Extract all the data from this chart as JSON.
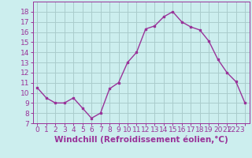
{
  "x": [
    0,
    1,
    2,
    3,
    4,
    5,
    6,
    7,
    8,
    9,
    10,
    11,
    12,
    13,
    14,
    15,
    16,
    17,
    18,
    19,
    20,
    21,
    22,
    23
  ],
  "y": [
    10.5,
    9.5,
    9.0,
    9.0,
    9.5,
    8.5,
    7.5,
    8.0,
    10.4,
    11.0,
    13.0,
    14.0,
    16.3,
    16.6,
    17.5,
    18.0,
    17.0,
    16.5,
    16.2,
    15.1,
    13.3,
    12.0,
    11.1,
    9.0
  ],
  "line_color": "#993399",
  "marker_color": "#993399",
  "bg_color": "#cceeee",
  "grid_color": "#aacccc",
  "xlabel": "Windchill (Refroidissement éolien,°C)",
  "xlabel_color": "#993399",
  "ylim": [
    7,
    19
  ],
  "xlim": [
    -0.5,
    23.5
  ],
  "yticks": [
    7,
    8,
    9,
    10,
    11,
    12,
    13,
    14,
    15,
    16,
    17,
    18
  ],
  "xticks": [
    0,
    1,
    2,
    3,
    4,
    5,
    6,
    7,
    8,
    9,
    10,
    11,
    12,
    13,
    14,
    15,
    16,
    17,
    18,
    19,
    20,
    21,
    22,
    23
  ],
  "tick_color": "#993399",
  "tick_fontsize": 6.5,
  "xlabel_fontsize": 7.5
}
